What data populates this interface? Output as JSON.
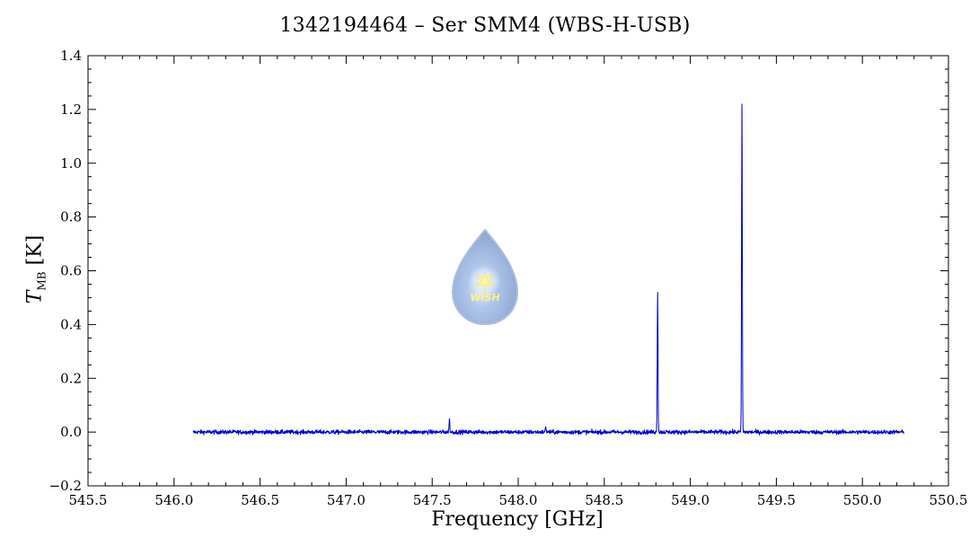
{
  "chart_data": {
    "type": "line",
    "title": "1342194464 – Ser SMM4 (WBS-H-USB)",
    "xlabel": "Frequency [GHz]",
    "ylabel_main": "T",
    "ylabel_sub": "MB",
    "ylabel_unit": "[K]",
    "xlim": [
      545.5,
      550.5
    ],
    "ylim": [
      -0.2,
      1.4
    ],
    "x_ticks": [
      "545.5",
      "546.0",
      "546.5",
      "547.0",
      "547.5",
      "548.0",
      "548.5",
      "549.0",
      "549.5",
      "550.0",
      "550.5"
    ],
    "y_ticks": [
      "−0.2",
      "0.0",
      "0.2",
      "0.4",
      "0.6",
      "0.8",
      "1.0",
      "1.2",
      "1.4"
    ],
    "series": [
      {
        "color": "#0000cc",
        "x_range": [
          546.11,
          550.24
        ],
        "baseline": 0.0,
        "noise_rms": 0.004,
        "peaks": [
          {
            "x": 547.6,
            "y": 0.05
          },
          {
            "x": 548.16,
            "y": 0.02
          },
          {
            "x": 548.81,
            "y": 0.52
          },
          {
            "x": 549.3,
            "y": 1.22
          }
        ]
      }
    ],
    "grid": false,
    "legend": "none"
  },
  "logo": {
    "text": "WISH"
  }
}
